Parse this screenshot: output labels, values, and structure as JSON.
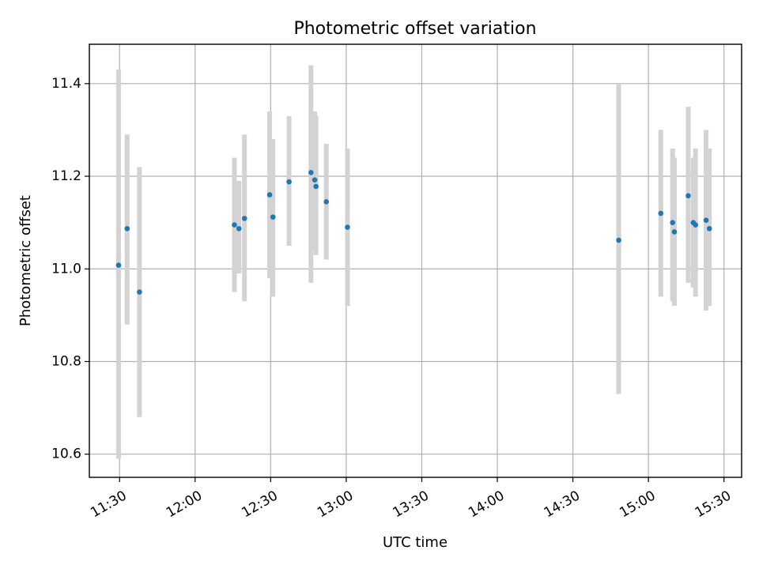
{
  "chart_data": {
    "type": "scatter",
    "title": "Photometric offset variation",
    "xlabel": "UTC time",
    "ylabel": "Photometric offset",
    "x_axis": "time",
    "xlim": [
      "11:18",
      "15:37"
    ],
    "ylim": [
      10.55,
      11.485
    ],
    "x_ticks": [
      "11:30",
      "12:00",
      "12:30",
      "13:00",
      "13:30",
      "14:00",
      "14:30",
      "15:00",
      "15:30"
    ],
    "y_ticks": [
      "10.6",
      "10.8",
      "11.0",
      "11.2",
      "11.4"
    ],
    "grid": true,
    "colors": {
      "point": "#1f77b4",
      "errorbar": "#d3d3d3",
      "grid": "#b0b0b0"
    },
    "points": [
      {
        "x": "11:29.6",
        "y": 11.008,
        "yerr_low": 10.59,
        "yerr_high": 11.43
      },
      {
        "x": "11:33.0",
        "y": 11.087,
        "yerr_low": 10.88,
        "yerr_high": 11.29
      },
      {
        "x": "11:37.9",
        "y": 10.95,
        "yerr_low": 10.68,
        "yerr_high": 11.22
      },
      {
        "x": "12:15.6",
        "y": 11.095,
        "yerr_low": 10.95,
        "yerr_high": 11.24
      },
      {
        "x": "12:17.4",
        "y": 11.087,
        "yerr_low": 10.99,
        "yerr_high": 11.19
      },
      {
        "x": "12:19.6",
        "y": 11.109,
        "yerr_low": 10.93,
        "yerr_high": 11.29
      },
      {
        "x": "12:29.6",
        "y": 11.16,
        "yerr_low": 10.98,
        "yerr_high": 11.34
      },
      {
        "x": "12:30.9",
        "y": 11.112,
        "yerr_low": 10.94,
        "yerr_high": 11.28
      },
      {
        "x": "12:37.3",
        "y": 11.188,
        "yerr_low": 11.05,
        "yerr_high": 11.33
      },
      {
        "x": "12:46.0",
        "y": 11.208,
        "yerr_low": 10.97,
        "yerr_high": 11.44
      },
      {
        "x": "12:47.5",
        "y": 11.192,
        "yerr_low": 11.04,
        "yerr_high": 11.34
      },
      {
        "x": "12:48.0",
        "y": 11.178,
        "yerr_low": 11.03,
        "yerr_high": 11.33
      },
      {
        "x": "12:52.1",
        "y": 11.145,
        "yerr_low": 11.02,
        "yerr_high": 11.27
      },
      {
        "x": "13:00.5",
        "y": 11.09,
        "yerr_low": 10.92,
        "yerr_high": 11.26
      },
      {
        "x": "14:48.2",
        "y": 11.062,
        "yerr_low": 10.73,
        "yerr_high": 11.4
      },
      {
        "x": "15:04.9",
        "y": 11.12,
        "yerr_low": 10.94,
        "yerr_high": 11.3
      },
      {
        "x": "15:09.6",
        "y": 11.1,
        "yerr_low": 10.93,
        "yerr_high": 11.26
      },
      {
        "x": "15:10.3",
        "y": 11.08,
        "yerr_low": 10.92,
        "yerr_high": 11.24
      },
      {
        "x": "15:15.8",
        "y": 11.158,
        "yerr_low": 10.97,
        "yerr_high": 11.35
      },
      {
        "x": "15:17.8",
        "y": 11.1,
        "yerr_low": 10.96,
        "yerr_high": 11.24
      },
      {
        "x": "15:18.7",
        "y": 11.095,
        "yerr_low": 10.94,
        "yerr_high": 11.26
      },
      {
        "x": "15:22.9",
        "y": 11.105,
        "yerr_low": 10.91,
        "yerr_high": 11.3
      },
      {
        "x": "15:24.2",
        "y": 11.087,
        "yerr_low": 10.92,
        "yerr_high": 11.26
      }
    ]
  }
}
